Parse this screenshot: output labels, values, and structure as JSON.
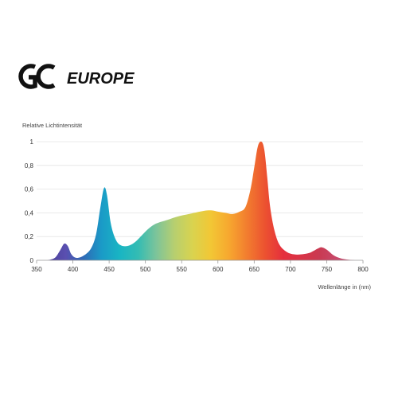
{
  "brand": {
    "logo_mark": "GC",
    "logo_text": "EUROPE"
  },
  "chart_data": {
    "type": "area",
    "title": "",
    "ylabel": "Relative Lichtintensität",
    "xlabel": "Wellenlänge in (nm)",
    "xlim": [
      350,
      800
    ],
    "ylim": [
      0,
      1
    ],
    "x_ticks": [
      350,
      400,
      450,
      500,
      550,
      600,
      650,
      700,
      750,
      800
    ],
    "y_ticks": [
      0,
      0.2,
      0.4,
      0.6,
      0.8,
      1
    ],
    "y_tick_labels": [
      "0",
      "0,2",
      "0,4",
      "0,6",
      "0,8",
      "1"
    ],
    "grid": true,
    "series": [
      {
        "x": [
          365,
          375,
          382,
          388,
          393,
          398,
          405,
          415,
          425,
          432,
          438,
          443,
          447,
          452,
          458,
          465,
          475,
          485,
          495,
          505,
          515,
          530,
          545,
          560,
          575,
          585,
          592,
          600,
          610,
          620,
          630,
          638,
          645,
          650,
          655,
          660,
          664,
          668,
          672,
          678,
          685,
          695,
          705,
          715,
          725,
          732,
          738,
          743,
          750,
          760,
          770,
          780,
          790
        ],
        "y": [
          0,
          0.02,
          0.08,
          0.14,
          0.12,
          0.05,
          0.02,
          0.04,
          0.1,
          0.22,
          0.45,
          0.61,
          0.55,
          0.32,
          0.19,
          0.13,
          0.12,
          0.15,
          0.21,
          0.27,
          0.31,
          0.34,
          0.37,
          0.39,
          0.41,
          0.42,
          0.42,
          0.41,
          0.4,
          0.39,
          0.41,
          0.45,
          0.6,
          0.78,
          0.96,
          1.0,
          0.93,
          0.7,
          0.45,
          0.25,
          0.13,
          0.07,
          0.05,
          0.05,
          0.06,
          0.08,
          0.1,
          0.11,
          0.09,
          0.04,
          0.015,
          0.005,
          0
        ]
      }
    ],
    "colors": [
      "#4a3f9a",
      "#5a4fb0",
      "#2e6bb6",
      "#1a9bc7",
      "#19b5c3",
      "#34bcb3",
      "#7dc49a",
      "#b7cf6f",
      "#d9d34f",
      "#f2c735",
      "#f7a82f",
      "#f27d2f",
      "#ec5230",
      "#e52f3d",
      "#d93446",
      "#c93a52",
      "#c84a6c",
      "#cf5e7e"
    ]
  }
}
